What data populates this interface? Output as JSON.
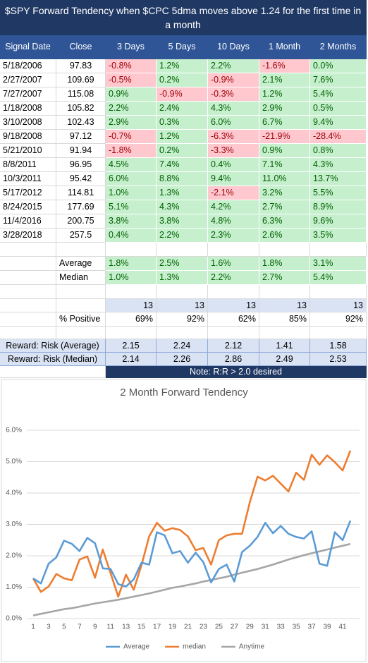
{
  "title": "$SPY Forward Tendency when $CPC 5dma moves above 1.24 for the first time in a month",
  "table": {
    "columns": [
      "Signal Date",
      "Close",
      "3 Days",
      "5 Days",
      "10 Days",
      "1 Month",
      "2 Months"
    ],
    "rows": [
      [
        "5/18/2006",
        "97.83",
        "-0.8%",
        "1.2%",
        "2.2%",
        "-1.6%",
        "0.0%"
      ],
      [
        "2/27/2007",
        "109.69",
        "-0.5%",
        "0.2%",
        "-0.9%",
        "2.1%",
        "7.6%"
      ],
      [
        "7/27/2007",
        "115.08",
        "0.9%",
        "-0.9%",
        "-0.3%",
        "1.2%",
        "5.4%"
      ],
      [
        "1/18/2008",
        "105.82",
        "2.2%",
        "2.4%",
        "4.3%",
        "2.9%",
        "0.5%"
      ],
      [
        "3/10/2008",
        "102.43",
        "2.9%",
        "0.3%",
        "6.0%",
        "6.7%",
        "9.4%"
      ],
      [
        "9/18/2008",
        "97.12",
        "-0.7%",
        "1.2%",
        "-6.3%",
        "-21.9%",
        "-28.4%"
      ],
      [
        "5/21/2010",
        "91.94",
        "-1.8%",
        "0.2%",
        "-3.3%",
        "0.9%",
        "0.8%"
      ],
      [
        "8/8/2011",
        "96.95",
        "4.5%",
        "7.4%",
        "0.4%",
        "7.1%",
        "4.3%"
      ],
      [
        "10/3/2011",
        "95.42",
        "6.0%",
        "8.8%",
        "9.4%",
        "11.0%",
        "13.7%"
      ],
      [
        "5/17/2012",
        "114.81",
        "1.0%",
        "1.3%",
        "-2.1%",
        "3.2%",
        "5.5%"
      ],
      [
        "8/24/2015",
        "177.69",
        "5.1%",
        "4.3%",
        "4.2%",
        "2.7%",
        "8.9%"
      ],
      [
        "11/4/2016",
        "200.75",
        "3.8%",
        "3.8%",
        "4.8%",
        "6.3%",
        "9.6%"
      ],
      [
        "3/28/2018",
        "257.5",
        "0.4%",
        "2.2%",
        "2.3%",
        "2.6%",
        "3.5%"
      ]
    ],
    "summary": [
      {
        "label": "Average",
        "values": [
          "1.8%",
          "2.5%",
          "1.6%",
          "1.8%",
          "3.1%"
        ]
      },
      {
        "label": "Median",
        "values": [
          "1.0%",
          "1.3%",
          "2.2%",
          "2.7%",
          "5.4%"
        ]
      }
    ],
    "counts": [
      "13",
      "13",
      "13",
      "13",
      "13"
    ],
    "positive": {
      "label": "% Positive",
      "values": [
        "69%",
        "92%",
        "62%",
        "85%",
        "92%"
      ]
    },
    "reward": [
      {
        "label": "Reward:  Risk (Average)",
        "values": [
          "2.15",
          "2.24",
          "2.12",
          "1.41",
          "1.58"
        ]
      },
      {
        "label": "Reward:  Risk (Median)",
        "values": [
          "2.14",
          "2.26",
          "2.86",
          "2.49",
          "2.53"
        ]
      }
    ],
    "note": "Note:  R:R > 2.0 desired"
  },
  "chart_data": {
    "type": "line",
    "title": "2 Month Forward Tendency",
    "categories": [
      1,
      null,
      3,
      null,
      5,
      null,
      7,
      null,
      9,
      null,
      11,
      null,
      13,
      null,
      15,
      null,
      17,
      null,
      19,
      null,
      21,
      null,
      23,
      null,
      25,
      null,
      27,
      null,
      29,
      null,
      31,
      null,
      33,
      null,
      35,
      null,
      37,
      null,
      39,
      null,
      41,
      null
    ],
    "series": [
      {
        "name": "Average",
        "color": "#5b9bd5",
        "values": [
          1.28,
          1.12,
          1.75,
          1.95,
          2.48,
          2.38,
          2.15,
          2.57,
          2.4,
          1.6,
          1.58,
          1.1,
          1.02,
          1.25,
          1.78,
          1.72,
          2.75,
          2.65,
          2.08,
          2.15,
          1.78,
          2.1,
          1.8,
          1.15,
          1.58,
          1.72,
          1.18,
          2.12,
          2.32,
          2.6,
          3.05,
          2.72,
          2.95,
          2.7,
          2.6,
          2.55,
          2.78,
          1.75,
          1.68,
          2.75,
          2.5,
          3.12
        ]
      },
      {
        "name": "median",
        "color": "#ed7d31",
        "values": [
          1.28,
          0.85,
          1.02,
          1.42,
          1.28,
          1.22,
          1.88,
          1.98,
          1.3,
          2.2,
          1.45,
          0.7,
          1.4,
          0.92,
          1.7,
          2.62,
          3.05,
          2.8,
          2.88,
          2.82,
          2.62,
          2.18,
          2.25,
          1.72,
          2.5,
          2.65,
          2.7,
          2.7,
          3.7,
          4.52,
          4.4,
          4.55,
          4.3,
          4.05,
          4.65,
          4.42,
          5.22,
          4.9,
          5.2,
          4.98,
          4.72,
          5.35
        ]
      },
      {
        "name": "Anytime",
        "color": "#a5a5a5",
        "values": [
          0.1,
          0.15,
          0.2,
          0.25,
          0.3,
          0.33,
          0.38,
          0.43,
          0.48,
          0.52,
          0.56,
          0.6,
          0.65,
          0.7,
          0.75,
          0.8,
          0.86,
          0.92,
          0.98,
          1.02,
          1.07,
          1.12,
          1.18,
          1.23,
          1.28,
          1.33,
          1.4,
          1.46,
          1.52,
          1.58,
          1.65,
          1.72,
          1.8,
          1.88,
          1.95,
          2.02,
          2.08,
          2.14,
          2.2,
          2.26,
          2.32,
          2.38
        ]
      }
    ],
    "ylim": [
      0,
      6
    ],
    "yticks": [
      {
        "value": 0,
        "label": "0.0%"
      },
      {
        "value": 1,
        "label": "1.0%"
      },
      {
        "value": 2,
        "label": "2.0%"
      },
      {
        "value": 3,
        "label": "3.0%"
      },
      {
        "value": 4,
        "label": "4.0%"
      },
      {
        "value": 5,
        "label": "5.0%"
      },
      {
        "value": 6,
        "label": "6.0%"
      }
    ],
    "grid": true,
    "legend": "bottom"
  }
}
